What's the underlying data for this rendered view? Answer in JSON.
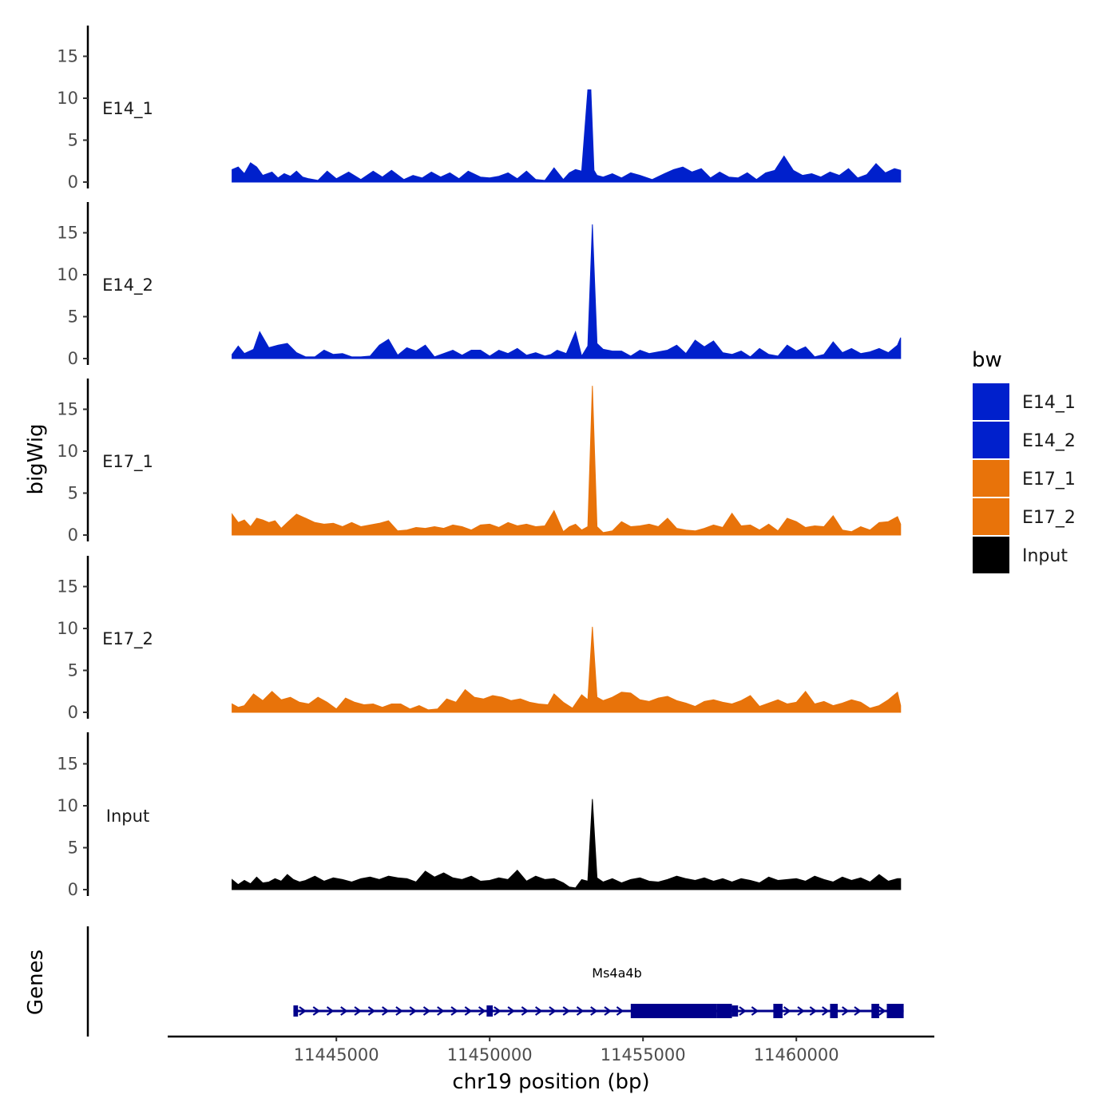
{
  "chart_data": {
    "type": "area",
    "title": "",
    "ylabel": "bigWig",
    "xlabel": "chr19 position (bp)",
    "xlim": [
      11441500,
      11463500
    ],
    "x_axis_range": [
      11439500,
      11464500
    ],
    "x_ticks": [
      11445000,
      11450000,
      11455000,
      11460000
    ],
    "x_tick_labels": [
      "11445000",
      "11450000",
      "11455000",
      "11460000"
    ],
    "ylim": [
      0,
      19
    ],
    "y_ticks": [
      0,
      5,
      10,
      15
    ],
    "y_tick_labels": [
      "0",
      "5",
      "10",
      "15"
    ],
    "legend": {
      "title": "bw",
      "position": "right",
      "entries": [
        {
          "label": "E14_1",
          "color": "#0020CC"
        },
        {
          "label": "E14_2",
          "color": "#0020CC"
        },
        {
          "label": "E17_1",
          "color": "#E8730A"
        },
        {
          "label": "E17_2",
          "color": "#E8730A"
        },
        {
          "label": "Input",
          "color": "#000000"
        }
      ]
    },
    "series": [
      {
        "name": "E14_1",
        "color": "#0020CC",
        "x": [
          11441600,
          11441800,
          11442000,
          11442200,
          11442400,
          11442600,
          11442900,
          11443100,
          11443300,
          11443500,
          11443700,
          11443900,
          11444100,
          11444400,
          11444700,
          11445000,
          11445400,
          11445800,
          11446200,
          11446500,
          11446800,
          11447200,
          11447500,
          11447800,
          11448100,
          11448400,
          11448700,
          11449000,
          11449300,
          11449700,
          11450000,
          11450300,
          11450600,
          11450900,
          11451200,
          11451500,
          11451800,
          11452100,
          11452400,
          11452600,
          11452800,
          11453000,
          11453200,
          11453300,
          11453400,
          11453500,
          11453700,
          11454000,
          11454300,
          11454600,
          11454900,
          11455300,
          11455700,
          11456000,
          11456300,
          11456600,
          11456900,
          11457200,
          11457500,
          11457800,
          11458100,
          11458400,
          11458700,
          11459000,
          11459300,
          11459600,
          11459900,
          11460200,
          11460500,
          11460800,
          11461100,
          11461400,
          11461700,
          11462000,
          11462300,
          11462600,
          11462900,
          11463200,
          11463400
        ],
        "values": [
          1.5,
          1.8,
          1.0,
          2.3,
          1.8,
          0.8,
          1.2,
          0.5,
          1.0,
          0.7,
          1.3,
          0.6,
          0.4,
          0.2,
          1.3,
          0.4,
          1.2,
          0.3,
          1.3,
          0.6,
          1.4,
          0.3,
          0.8,
          0.5,
          1.2,
          0.6,
          1.1,
          0.4,
          1.3,
          0.6,
          0.5,
          0.7,
          1.1,
          0.4,
          1.3,
          0.3,
          0.2,
          1.7,
          0.3,
          1.1,
          1.5,
          1.3,
          11.0,
          11.0,
          1.4,
          0.8,
          0.6,
          1.0,
          0.5,
          1.1,
          0.8,
          0.3,
          1.0,
          1.5,
          1.8,
          1.2,
          1.6,
          0.5,
          1.2,
          0.6,
          0.5,
          1.1,
          0.3,
          1.1,
          1.4,
          3.1,
          1.4,
          0.8,
          1.0,
          0.6,
          1.2,
          0.8,
          1.6,
          0.5,
          0.9,
          2.2,
          1.1,
          1.6,
          1.4
        ]
      },
      {
        "name": "E14_2",
        "color": "#0020CC",
        "x": [
          11441600,
          11441800,
          11442000,
          11442300,
          11442500,
          11442800,
          11443100,
          11443400,
          11443700,
          11444000,
          11444300,
          11444600,
          11444900,
          11445200,
          11445500,
          11445800,
          11446100,
          11446400,
          11446700,
          11447000,
          11447300,
          11447600,
          11447900,
          11448200,
          11448500,
          11448800,
          11449100,
          11449400,
          11449700,
          11450000,
          11450300,
          11450600,
          11450900,
          11451200,
          11451500,
          11451800,
          11452000,
          11452200,
          11452500,
          11452800,
          11453000,
          11453200,
          11453350,
          11453500,
          11453700,
          11454000,
          11454300,
          11454600,
          11454900,
          11455200,
          11455500,
          11455800,
          11456100,
          11456400,
          11456700,
          11457000,
          11457300,
          11457600,
          11457900,
          11458200,
          11458500,
          11458800,
          11459100,
          11459400,
          11459700,
          11460000,
          11460300,
          11460600,
          11460900,
          11461200,
          11461500,
          11461800,
          11462100,
          11462400,
          11462700,
          11463000,
          11463300,
          11463400
        ],
        "values": [
          0.5,
          1.5,
          0.6,
          1.1,
          3.2,
          1.3,
          1.6,
          1.8,
          0.7,
          0.2,
          0.2,
          1.0,
          0.5,
          0.6,
          0.2,
          0.2,
          0.3,
          1.6,
          2.3,
          0.4,
          1.3,
          0.9,
          1.6,
          0.2,
          0.6,
          1.0,
          0.4,
          1.0,
          1.0,
          0.3,
          1.0,
          0.6,
          1.2,
          0.4,
          0.7,
          0.3,
          0.5,
          1.0,
          0.6,
          3.2,
          0.3,
          1.5,
          16.0,
          1.8,
          1.1,
          0.9,
          0.9,
          0.3,
          1.0,
          0.6,
          0.8,
          1.0,
          1.6,
          0.6,
          2.2,
          1.4,
          2.1,
          0.7,
          0.5,
          0.9,
          0.2,
          1.2,
          0.5,
          0.3,
          1.6,
          0.9,
          1.4,
          0.2,
          0.5,
          2.0,
          0.7,
          1.2,
          0.6,
          0.8,
          1.2,
          0.7,
          1.6,
          2.5
        ]
      },
      {
        "name": "E17_1",
        "color": "#E8730A",
        "x": [
          11441600,
          11441800,
          11442000,
          11442200,
          11442400,
          11442600,
          11442800,
          11443000,
          11443200,
          11443400,
          11443700,
          11444000,
          11444300,
          11444600,
          11444900,
          11445200,
          11445500,
          11445800,
          11446100,
          11446400,
          11446700,
          11447000,
          11447300,
          11447600,
          11447900,
          11448200,
          11448500,
          11448800,
          11449100,
          11449400,
          11449700,
          11450000,
          11450300,
          11450600,
          11450900,
          11451200,
          11451500,
          11451800,
          11452100,
          11452400,
          11452600,
          11452800,
          11453000,
          11453200,
          11453350,
          11453500,
          11453700,
          11454000,
          11454300,
          11454600,
          11454900,
          11455200,
          11455500,
          11455800,
          11456100,
          11456400,
          11456700,
          11457000,
          11457300,
          11457600,
          11457900,
          11458200,
          11458500,
          11458800,
          11459100,
          11459400,
          11459700,
          11460000,
          11460300,
          11460600,
          11460900,
          11461200,
          11461500,
          11461800,
          11462100,
          11462400,
          11462700,
          11463000,
          11463300,
          11463400
        ],
        "values": [
          2.5,
          1.5,
          1.8,
          1.0,
          2.0,
          1.8,
          1.5,
          1.7,
          0.8,
          1.5,
          2.5,
          2.0,
          1.5,
          1.3,
          1.4,
          1.0,
          1.5,
          1.0,
          1.2,
          1.4,
          1.7,
          0.5,
          0.6,
          0.9,
          0.8,
          1.0,
          0.8,
          1.2,
          1.0,
          0.6,
          1.2,
          1.3,
          0.9,
          1.5,
          1.1,
          1.3,
          1.0,
          1.1,
          2.9,
          0.4,
          1.0,
          1.3,
          0.6,
          1.0,
          17.8,
          1.0,
          0.3,
          0.5,
          1.6,
          1.0,
          1.1,
          1.3,
          1.0,
          2.0,
          0.8,
          0.6,
          0.5,
          0.8,
          1.2,
          0.9,
          2.6,
          1.1,
          1.2,
          0.6,
          1.3,
          0.5,
          2.0,
          1.6,
          0.9,
          1.1,
          1.0,
          2.3,
          0.6,
          0.4,
          1.0,
          0.6,
          1.5,
          1.6,
          2.2,
          1.3
        ]
      },
      {
        "name": "E17_2",
        "color": "#E8730A",
        "x": [
          11441600,
          11441800,
          11442000,
          11442300,
          11442600,
          11442900,
          11443200,
          11443500,
          11443800,
          11444100,
          11444400,
          11444700,
          11445000,
          11445300,
          11445600,
          11445900,
          11446200,
          11446500,
          11446800,
          11447100,
          11447400,
          11447700,
          11448000,
          11448300,
          11448600,
          11448900,
          11449200,
          11449500,
          11449800,
          11450100,
          11450400,
          11450700,
          11451000,
          11451300,
          11451600,
          11451900,
          11452100,
          11452400,
          11452700,
          11453000,
          11453200,
          11453350,
          11453500,
          11453700,
          11454000,
          11454300,
          11454600,
          11454900,
          11455200,
          11455500,
          11455800,
          11456100,
          11456400,
          11456700,
          11457000,
          11457300,
          11457600,
          11457900,
          11458200,
          11458500,
          11458800,
          11459100,
          11459400,
          11459700,
          11460000,
          11460300,
          11460600,
          11460900,
          11461200,
          11461500,
          11461800,
          11462100,
          11462400,
          11462700,
          11463000,
          11463300,
          11463400
        ],
        "values": [
          1.0,
          0.6,
          0.8,
          2.2,
          1.4,
          2.5,
          1.5,
          1.8,
          1.2,
          1.0,
          1.8,
          1.2,
          0.4,
          1.7,
          1.2,
          0.9,
          1.0,
          0.6,
          1.0,
          1.0,
          0.4,
          0.8,
          0.3,
          0.4,
          1.6,
          1.2,
          2.7,
          1.8,
          1.6,
          2.0,
          1.8,
          1.4,
          1.6,
          1.2,
          1.0,
          0.9,
          2.2,
          1.2,
          0.5,
          2.1,
          1.5,
          10.2,
          1.8,
          1.4,
          1.8,
          2.4,
          2.3,
          1.5,
          1.3,
          1.7,
          1.9,
          1.4,
          1.1,
          0.7,
          1.3,
          1.5,
          1.2,
          1.0,
          1.4,
          2.0,
          0.7,
          1.1,
          1.5,
          1.0,
          1.2,
          2.5,
          1.0,
          1.3,
          0.8,
          1.1,
          1.5,
          1.2,
          0.5,
          0.8,
          1.5,
          2.4,
          0.8
        ]
      },
      {
        "name": "Input",
        "color": "#000000",
        "x": [
          11441600,
          11441800,
          11442000,
          11442200,
          11442400,
          11442600,
          11442800,
          11443000,
          11443200,
          11443400,
          11443600,
          11443800,
          11444000,
          11444300,
          11444600,
          11444900,
          11445200,
          11445500,
          11445800,
          11446100,
          11446400,
          11446700,
          11447000,
          11447300,
          11447600,
          11447900,
          11448200,
          11448500,
          11448800,
          11449100,
          11449400,
          11449700,
          11450000,
          11450300,
          11450600,
          11450900,
          11451200,
          11451500,
          11451800,
          11452100,
          11452400,
          11452600,
          11452800,
          11453000,
          11453200,
          11453350,
          11453500,
          11453700,
          11454000,
          11454300,
          11454600,
          11454900,
          11455200,
          11455500,
          11455800,
          11456100,
          11456400,
          11456700,
          11457000,
          11457300,
          11457600,
          11457900,
          11458200,
          11458500,
          11458800,
          11459100,
          11459400,
          11459700,
          11460000,
          11460300,
          11460600,
          11460900,
          11461200,
          11461500,
          11461800,
          11462100,
          11462400,
          11462700,
          11463000,
          11463300,
          11463400
        ],
        "values": [
          1.2,
          0.6,
          1.1,
          0.7,
          1.5,
          0.8,
          0.9,
          1.3,
          1.0,
          1.8,
          1.2,
          0.9,
          1.1,
          1.6,
          1.0,
          1.4,
          1.2,
          0.9,
          1.3,
          1.5,
          1.2,
          1.6,
          1.4,
          1.3,
          0.9,
          2.2,
          1.5,
          2.0,
          1.4,
          1.2,
          1.6,
          1.0,
          1.1,
          1.4,
          1.2,
          2.3,
          1.0,
          1.6,
          1.2,
          1.3,
          0.8,
          0.3,
          0.2,
          1.2,
          1.0,
          10.8,
          1.4,
          0.9,
          1.3,
          0.8,
          1.2,
          1.4,
          1.0,
          0.9,
          1.2,
          1.6,
          1.3,
          1.1,
          1.4,
          1.0,
          1.3,
          0.9,
          1.3,
          1.1,
          0.8,
          1.5,
          1.1,
          1.2,
          1.3,
          1.0,
          1.6,
          1.2,
          0.9,
          1.5,
          1.1,
          1.4,
          0.9,
          1.8,
          1.0,
          1.3,
          1.3
        ]
      }
    ],
    "gene_track": {
      "ylabel": "Genes",
      "gene_name": "Ms4a4b",
      "color": "#00008B",
      "strand": "+",
      "line_start": 11443600,
      "line_end": 11463500,
      "arrow_positions": [
        11443900,
        11444350,
        11444800,
        11445250,
        11445700,
        11446150,
        11446600,
        11447050,
        11447500,
        11447950,
        11448400,
        11448850,
        11449300,
        11449750,
        11450250,
        11450700,
        11451150,
        11451600,
        11452050,
        11452500,
        11452950,
        11453400,
        11453850,
        11454250,
        11458250,
        11458650,
        11459700,
        11460150,
        11460550,
        11460950,
        11461600,
        11462000,
        11462800,
        11463250
      ],
      "exons": [
        {
          "start": 11443600,
          "end": 11443750,
          "type": "utr"
        },
        {
          "start": 11449900,
          "end": 11450100,
          "type": "utr"
        },
        {
          "start": 11454600,
          "end": 11457400,
          "type": "cds"
        },
        {
          "start": 11457400,
          "end": 11457900,
          "type": "cds"
        },
        {
          "start": 11457900,
          "end": 11458100,
          "type": "utr"
        },
        {
          "start": 11459250,
          "end": 11459550,
          "type": "cds"
        },
        {
          "start": 11461100,
          "end": 11461350,
          "type": "cds"
        },
        {
          "start": 11462450,
          "end": 11462700,
          "type": "cds"
        },
        {
          "start": 11462950,
          "end": 11463500,
          "type": "cds"
        }
      ]
    }
  }
}
